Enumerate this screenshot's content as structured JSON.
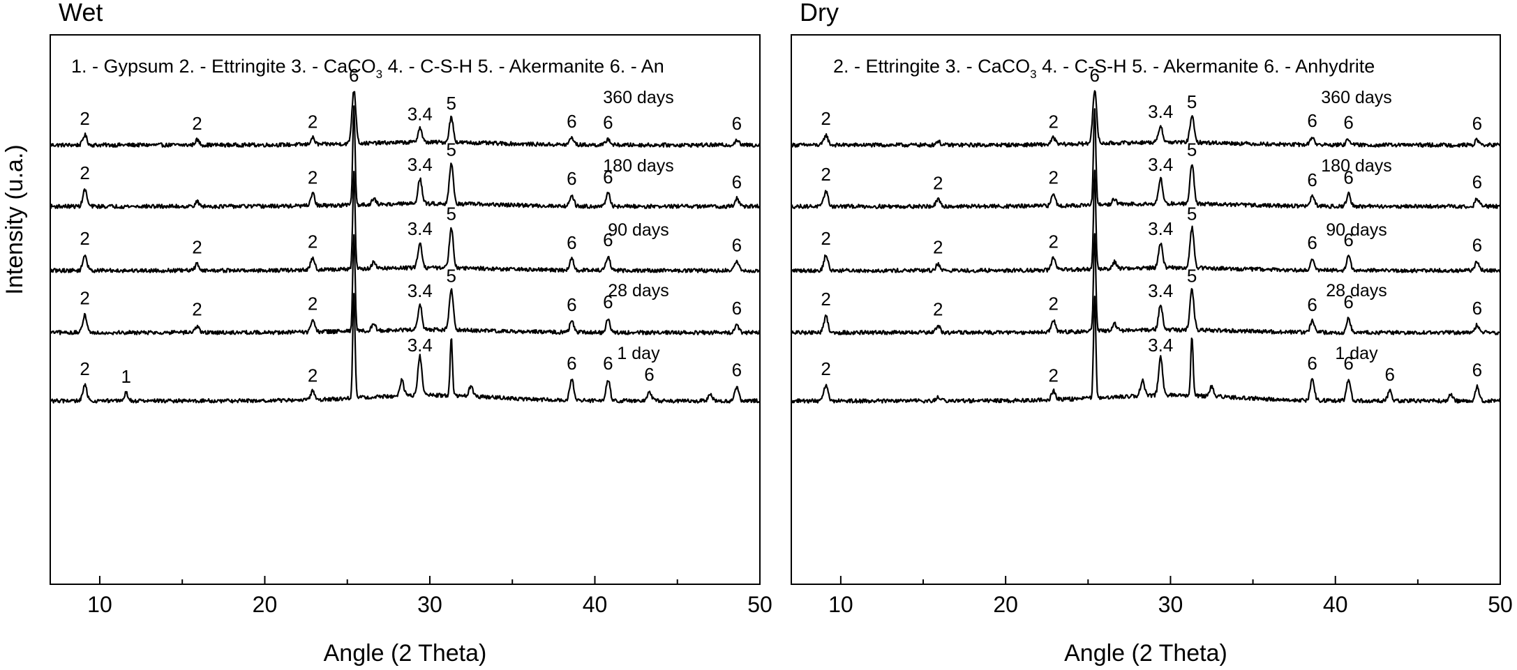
{
  "figure": {
    "ylabel": "Intensity (u.a.)"
  },
  "chart_data": [
    {
      "type": "line",
      "title": "Wet",
      "xlabel": "Angle (2 Theta)",
      "ylabel": "Intensity (u.a.)",
      "xlim": [
        7,
        50
      ],
      "xticks": [
        10,
        20,
        30,
        40,
        50
      ],
      "legend": {
        "text": "1. - Gypsum  2. - Ettringite   3. - CaCO",
        "sub": "3",
        "tail": "   4. - C-S-H   5. - Akermanite   6. - An"
      },
      "series": [
        {
          "name": "360 days",
          "peaks": [
            {
              "x": 9.1,
              "h": 0.18,
              "label": "2"
            },
            {
              "x": 15.9,
              "h": 0.09,
              "label": "2"
            },
            {
              "x": 22.9,
              "h": 0.12,
              "label": "2"
            },
            {
              "x": 25.4,
              "h": 0.95,
              "label": "6"
            },
            {
              "x": 29.4,
              "h": 0.26,
              "label": "3.4"
            },
            {
              "x": 31.3,
              "h": 0.45,
              "label": "5"
            },
            {
              "x": 38.6,
              "h": 0.13,
              "label": "6"
            },
            {
              "x": 40.8,
              "h": 0.11,
              "label": "6"
            },
            {
              "x": 48.6,
              "h": 0.09,
              "label": "6"
            }
          ]
        },
        {
          "name": "180 days",
          "peaks": [
            {
              "x": 9.1,
              "h": 0.3,
              "label": "2"
            },
            {
              "x": 15.9,
              "h": 0.08
            },
            {
              "x": 22.9,
              "h": 0.22,
              "label": "2"
            },
            {
              "x": 25.4,
              "h": 1.75,
              "label": ""
            },
            {
              "x": 26.6,
              "h": 0.1
            },
            {
              "x": 29.4,
              "h": 0.45,
              "label": "3.4"
            },
            {
              "x": 31.3,
              "h": 0.72,
              "label": "5"
            },
            {
              "x": 38.6,
              "h": 0.2,
              "label": "6"
            },
            {
              "x": 40.8,
              "h": 0.23,
              "label": "6"
            },
            {
              "x": 48.6,
              "h": 0.14,
              "label": "6"
            }
          ]
        },
        {
          "name": "90 days",
          "peaks": [
            {
              "x": 9.1,
              "h": 0.28,
              "label": "2"
            },
            {
              "x": 15.9,
              "h": 0.12,
              "label": "2"
            },
            {
              "x": 22.9,
              "h": 0.22,
              "label": "2"
            },
            {
              "x": 25.4,
              "h": 1.75,
              "label": ""
            },
            {
              "x": 26.6,
              "h": 0.12
            },
            {
              "x": 29.4,
              "h": 0.45,
              "label": "3.4"
            },
            {
              "x": 31.3,
              "h": 0.72,
              "label": "5"
            },
            {
              "x": 38.6,
              "h": 0.2,
              "label": "6"
            },
            {
              "x": 40.8,
              "h": 0.25,
              "label": "6"
            },
            {
              "x": 48.6,
              "h": 0.16,
              "label": "6"
            }
          ]
        },
        {
          "name": "28 days",
          "peaks": [
            {
              "x": 9.1,
              "h": 0.32,
              "label": "2"
            },
            {
              "x": 15.9,
              "h": 0.12,
              "label": "2"
            },
            {
              "x": 22.9,
              "h": 0.22,
              "label": "2"
            },
            {
              "x": 25.4,
              "h": 1.75,
              "label": ""
            },
            {
              "x": 26.6,
              "h": 0.12
            },
            {
              "x": 29.4,
              "h": 0.45,
              "label": "3.4"
            },
            {
              "x": 31.3,
              "h": 0.72,
              "label": "5"
            },
            {
              "x": 38.6,
              "h": 0.2,
              "label": "6"
            },
            {
              "x": 40.8,
              "h": 0.25,
              "label": "6"
            },
            {
              "x": 48.6,
              "h": 0.14,
              "label": "6"
            }
          ]
        },
        {
          "name": "1 day",
          "peaks": [
            {
              "x": 9.1,
              "h": 0.28,
              "label": "2"
            },
            {
              "x": 11.6,
              "h": 0.14,
              "label": "1"
            },
            {
              "x": 22.9,
              "h": 0.16,
              "label": "2"
            },
            {
              "x": 25.4,
              "h": 1.85,
              "label": ""
            },
            {
              "x": 28.3,
              "h": 0.28
            },
            {
              "x": 29.4,
              "h": 0.7,
              "label": "3.4"
            },
            {
              "x": 31.3,
              "h": 1.05,
              "label": ""
            },
            {
              "x": 32.5,
              "h": 0.18
            },
            {
              "x": 38.6,
              "h": 0.38,
              "label": "6"
            },
            {
              "x": 40.8,
              "h": 0.38,
              "label": "6"
            },
            {
              "x": 43.3,
              "h": 0.18,
              "label": "6"
            },
            {
              "x": 47.0,
              "h": 0.12
            },
            {
              "x": 48.6,
              "h": 0.26,
              "label": "6"
            }
          ]
        }
      ]
    },
    {
      "type": "line",
      "title": "Dry",
      "xlabel": "Angle (2 Theta)",
      "ylabel": "",
      "xlim": [
        7,
        50
      ],
      "xticks": [
        10,
        20,
        30,
        40,
        50
      ],
      "legend": {
        "text": "2. - Ettringite     3. - CaCO",
        "sub": "3",
        "tail": "    4. - C-S-H   5. - Akermanite    6. - Anhydrite"
      },
      "series": [
        {
          "name": "360 days",
          "peaks": [
            {
              "x": 9.1,
              "h": 0.18,
              "label": "2"
            },
            {
              "x": 15.9,
              "h": 0.07
            },
            {
              "x": 22.9,
              "h": 0.12,
              "label": "2"
            },
            {
              "x": 25.4,
              "h": 0.95,
              "label": "6"
            },
            {
              "x": 29.4,
              "h": 0.3,
              "label": "3.4"
            },
            {
              "x": 31.3,
              "h": 0.48,
              "label": "5"
            },
            {
              "x": 38.6,
              "h": 0.14,
              "label": "6"
            },
            {
              "x": 40.8,
              "h": 0.11,
              "label": "6"
            },
            {
              "x": 48.6,
              "h": 0.09,
              "label": "6"
            }
          ]
        },
        {
          "name": "180 days",
          "peaks": [
            {
              "x": 9.1,
              "h": 0.28,
              "label": "2"
            },
            {
              "x": 15.9,
              "h": 0.12,
              "label": "2"
            },
            {
              "x": 22.9,
              "h": 0.22,
              "label": "2"
            },
            {
              "x": 25.4,
              "h": 1.75,
              "label": ""
            },
            {
              "x": 26.6,
              "h": 0.1
            },
            {
              "x": 29.4,
              "h": 0.45,
              "label": "3.4"
            },
            {
              "x": 31.3,
              "h": 0.72,
              "label": "5"
            },
            {
              "x": 38.6,
              "h": 0.18,
              "label": "6"
            },
            {
              "x": 40.8,
              "h": 0.22,
              "label": "6"
            },
            {
              "x": 48.6,
              "h": 0.14,
              "label": "6"
            }
          ]
        },
        {
          "name": "90 days",
          "peaks": [
            {
              "x": 9.1,
              "h": 0.28,
              "label": "2"
            },
            {
              "x": 15.9,
              "h": 0.12,
              "label": "2"
            },
            {
              "x": 22.9,
              "h": 0.22,
              "label": "2"
            },
            {
              "x": 25.4,
              "h": 1.75,
              "label": ""
            },
            {
              "x": 26.6,
              "h": 0.12
            },
            {
              "x": 29.4,
              "h": 0.45,
              "label": "3.4"
            },
            {
              "x": 31.3,
              "h": 0.72,
              "label": "5"
            },
            {
              "x": 38.6,
              "h": 0.2,
              "label": "6"
            },
            {
              "x": 40.8,
              "h": 0.25,
              "label": "6"
            },
            {
              "x": 48.6,
              "h": 0.16,
              "label": "6"
            }
          ]
        },
        {
          "name": "28 days",
          "peaks": [
            {
              "x": 9.1,
              "h": 0.3,
              "label": "2"
            },
            {
              "x": 15.9,
              "h": 0.12,
              "label": "2"
            },
            {
              "x": 22.9,
              "h": 0.22,
              "label": "2"
            },
            {
              "x": 25.4,
              "h": 1.75,
              "label": ""
            },
            {
              "x": 26.6,
              "h": 0.12
            },
            {
              "x": 29.4,
              "h": 0.45,
              "label": "3.4"
            },
            {
              "x": 31.3,
              "h": 0.72,
              "label": "5"
            },
            {
              "x": 38.6,
              "h": 0.2,
              "label": "6"
            },
            {
              "x": 40.8,
              "h": 0.25,
              "label": "6"
            },
            {
              "x": 48.6,
              "h": 0.14,
              "label": "6"
            }
          ]
        },
        {
          "name": "1 day",
          "peaks": [
            {
              "x": 9.1,
              "h": 0.28,
              "label": "2"
            },
            {
              "x": 15.9,
              "h": 0.06
            },
            {
              "x": 22.9,
              "h": 0.16,
              "label": "2"
            },
            {
              "x": 25.4,
              "h": 1.85,
              "label": ""
            },
            {
              "x": 28.3,
              "h": 0.28
            },
            {
              "x": 29.4,
              "h": 0.7,
              "label": "3.4"
            },
            {
              "x": 31.3,
              "h": 1.05,
              "label": ""
            },
            {
              "x": 32.5,
              "h": 0.18
            },
            {
              "x": 38.6,
              "h": 0.38,
              "label": "6"
            },
            {
              "x": 40.8,
              "h": 0.38,
              "label": "6"
            },
            {
              "x": 43.3,
              "h": 0.18,
              "label": "6"
            },
            {
              "x": 47.0,
              "h": 0.12
            },
            {
              "x": 48.6,
              "h": 0.26,
              "label": "6"
            }
          ]
        }
      ]
    }
  ]
}
